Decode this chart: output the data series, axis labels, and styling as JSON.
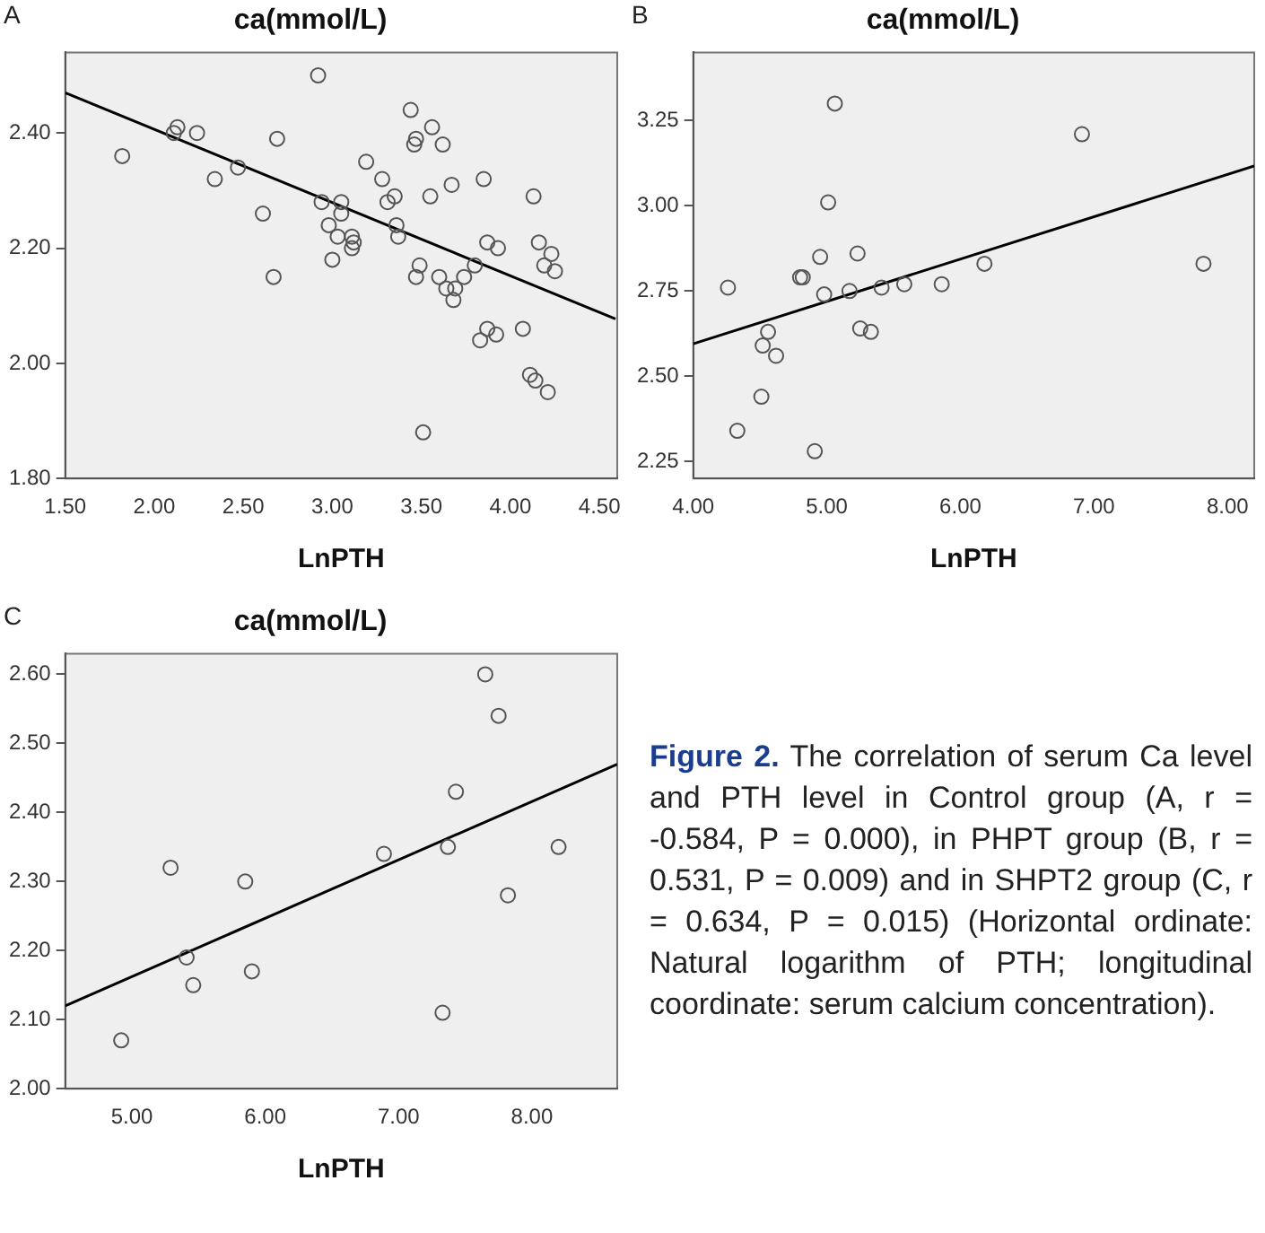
{
  "chart_data": [
    {
      "type": "scatter",
      "title": "ca(mmol/L)",
      "xlabel": "LnPTH",
      "annotations": [
        "A"
      ],
      "grid": false,
      "xlim": [
        1.5,
        4.6
      ],
      "xticks": [
        {
          "value": 1.5,
          "label": "1.50"
        },
        {
          "value": 2,
          "label": "2.00"
        },
        {
          "value": 2.5,
          "label": "2.50"
        },
        {
          "value": 3,
          "label": "3.00"
        },
        {
          "value": 3.5,
          "label": "3.50"
        },
        {
          "value": 4,
          "label": "4.00"
        },
        {
          "value": 4.5,
          "label": "4.50"
        }
      ],
      "ylim": [
        1.8,
        2.54
      ],
      "yticks": [
        {
          "value": 1.8,
          "label": "1.80"
        },
        {
          "value": 2,
          "label": "2.00"
        },
        {
          "value": 2.2,
          "label": "2.20"
        },
        {
          "value": 2.4,
          "label": "2.40"
        }
      ],
      "series": [
        {
          "type": "scatter",
          "marker": "circle",
          "color": "#555555",
          "x": [
            1.82,
            2.13,
            2.11,
            2.24,
            2.34,
            2.47,
            2.61,
            2.69,
            2.67,
            2.92,
            2.94,
            3.05,
            3.05,
            2.98,
            3.03,
            3.0,
            3.11,
            3.12,
            3.11,
            3.19,
            3.28,
            3.31,
            3.35,
            3.36,
            3.37,
            3.44,
            3.47,
            3.46,
            3.56,
            3.62,
            3.55,
            3.49,
            3.47,
            3.6,
            3.51,
            3.67,
            3.64,
            3.68,
            3.69,
            3.74,
            3.8,
            3.85,
            3.87,
            3.93,
            3.83,
            3.87,
            3.92,
            4.07,
            4.13,
            4.16,
            4.23,
            4.19,
            4.25,
            4.11,
            4.14,
            4.21
          ],
          "values": [
            2.36,
            2.41,
            2.4,
            2.4,
            2.32,
            2.34,
            2.26,
            2.39,
            2.15,
            2.5,
            2.28,
            2.28,
            2.26,
            2.24,
            2.22,
            2.18,
            2.22,
            2.21,
            2.2,
            2.35,
            2.32,
            2.28,
            2.29,
            2.24,
            2.22,
            2.44,
            2.39,
            2.38,
            2.41,
            2.38,
            2.29,
            2.17,
            2.15,
            2.15,
            1.88,
            2.31,
            2.13,
            2.11,
            2.13,
            2.15,
            2.17,
            2.32,
            2.21,
            2.2,
            2.04,
            2.06,
            2.05,
            2.06,
            2.29,
            2.21,
            2.19,
            2.17,
            2.16,
            1.98,
            1.97,
            1.95
          ]
        },
        {
          "type": "line",
          "color": "#000000",
          "x": [
            1.5,
            4.59
          ],
          "values": [
            2.47,
            2.077
          ]
        }
      ]
    },
    {
      "type": "scatter",
      "title": "ca(mmol/L)",
      "xlabel": "LnPTH",
      "annotations": [
        "B"
      ],
      "grid": false,
      "xlim": [
        4.0,
        8.2
      ],
      "xticks": [
        {
          "value": 4,
          "label": "4.00"
        },
        {
          "value": 5,
          "label": "5.00"
        },
        {
          "value": 6,
          "label": "6.00"
        },
        {
          "value": 7,
          "label": "7.00"
        },
        {
          "value": 8,
          "label": "8.00"
        }
      ],
      "ylim": [
        2.2,
        3.45
      ],
      "yticks": [
        {
          "value": 2.25,
          "label": "2.25"
        },
        {
          "value": 2.5,
          "label": "2.50"
        },
        {
          "value": 2.75,
          "label": "2.75"
        },
        {
          "value": 3,
          "label": "3.00"
        },
        {
          "value": 3.25,
          "label": "3.25"
        }
      ],
      "series": [
        {
          "type": "scatter",
          "marker": "circle",
          "color": "#555555",
          "x": [
            4.26,
            4.33,
            4.51,
            4.52,
            4.56,
            4.62,
            4.8,
            4.82,
            4.91,
            4.95,
            4.98,
            5.01,
            5.06,
            5.17,
            5.23,
            5.25,
            5.33,
            5.41,
            5.58,
            5.86,
            6.18,
            6.91,
            7.82
          ],
          "values": [
            2.76,
            2.34,
            2.44,
            2.59,
            2.63,
            2.56,
            2.79,
            2.79,
            2.28,
            2.85,
            2.74,
            3.01,
            3.3,
            2.75,
            2.86,
            2.64,
            2.63,
            2.76,
            2.77,
            2.77,
            2.83,
            3.21,
            2.83
          ]
        },
        {
          "type": "line",
          "color": "#000000",
          "x": [
            4.0,
            8.2
          ],
          "values": [
            2.595,
            3.117
          ]
        }
      ]
    },
    {
      "type": "scatter",
      "title": "ca(mmol/L)",
      "xlabel": "LnPTH",
      "annotations": [
        "C",
        "Figure 2.",
        "The correlation of serum Ca level and PTH level in Control group (A, r = -0.584, P = 0.000), in PHPT group (B, r = 0.531, P = 0.009) and in SHPT2 group (C, r = 0.634, P = 0.015) (Horizontal ordinate: Natural logarithm of PTH; longitudinal coordinate: serum calcium concentration)."
      ],
      "grid": false,
      "xlim": [
        4.5,
        8.64
      ],
      "xticks": [
        {
          "value": 5,
          "label": "5.00"
        },
        {
          "value": 6,
          "label": "6.00"
        },
        {
          "value": 7,
          "label": "7.00"
        },
        {
          "value": 8,
          "label": "8.00"
        }
      ],
      "ylim": [
        2.0,
        2.63
      ],
      "yticks": [
        {
          "value": 2,
          "label": "2.00"
        },
        {
          "value": 2.1,
          "label": "2.10"
        },
        {
          "value": 2.2,
          "label": "2.20"
        },
        {
          "value": 2.3,
          "label": "2.30"
        },
        {
          "value": 2.4,
          "label": "2.40"
        },
        {
          "value": 2.5,
          "label": "2.50"
        },
        {
          "value": 2.6,
          "label": "2.60"
        }
      ],
      "series": [
        {
          "type": "scatter",
          "marker": "circle",
          "color": "#555555",
          "x": [
            4.92,
            5.29,
            5.41,
            5.46,
            5.85,
            5.9,
            6.89,
            7.33,
            7.37,
            7.43,
            7.65,
            7.75,
            7.82,
            8.2
          ],
          "values": [
            2.07,
            2.32,
            2.19,
            2.15,
            2.3,
            2.17,
            2.34,
            2.11,
            2.35,
            2.43,
            2.6,
            2.54,
            2.28,
            2.35
          ]
        },
        {
          "type": "line",
          "color": "#000000",
          "x": [
            4.5,
            8.64
          ],
          "values": [
            2.12,
            2.47
          ]
        }
      ]
    }
  ]
}
